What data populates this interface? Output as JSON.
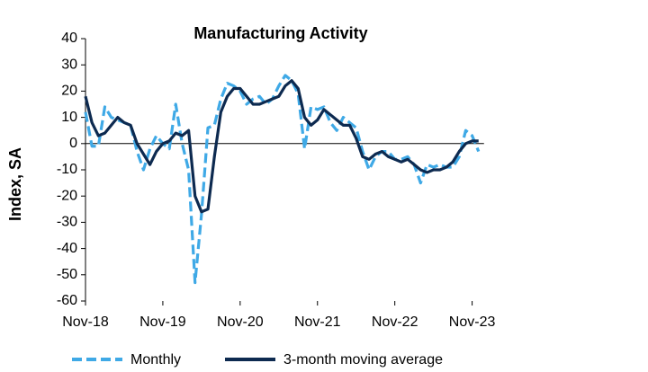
{
  "chart_data": {
    "type": "line",
    "title": "Manufacturing Activity",
    "y_label": "Index, SA",
    "categories": [
      "Nov-18",
      null,
      null,
      null,
      null,
      null,
      null,
      null,
      null,
      null,
      null,
      null,
      "Nov-19",
      null,
      null,
      null,
      null,
      null,
      null,
      null,
      null,
      null,
      null,
      null,
      "Nov-20",
      null,
      null,
      null,
      null,
      null,
      null,
      null,
      null,
      null,
      null,
      null,
      "Nov-21",
      null,
      null,
      null,
      null,
      null,
      null,
      null,
      null,
      null,
      null,
      null,
      "Nov-22",
      null,
      null,
      null,
      null,
      null,
      null,
      null,
      null,
      null,
      null,
      null,
      "Nov-23",
      null
    ],
    "series": [
      {
        "name": "Monthly",
        "color": "#3fa9e6",
        "dashed": true,
        "values": [
          12,
          -1,
          -1,
          14,
          10,
          9,
          8,
          7,
          -3,
          -10,
          -2,
          3,
          0,
          -2,
          15,
          0,
          -10,
          -53,
          -27,
          6,
          7,
          17,
          23,
          22,
          20,
          15,
          17,
          18,
          15,
          17,
          22,
          26,
          24,
          19,
          -2,
          14,
          13,
          14,
          8,
          5,
          10,
          8,
          6,
          -3,
          -10,
          -5,
          -3,
          -3,
          -6,
          -6,
          -5,
          -8,
          -15,
          -8,
          -9,
          -8,
          -9,
          -9,
          -5,
          5,
          3,
          -3
        ]
      },
      {
        "name": "3-month moving average",
        "color": "#0d2a50",
        "dashed": false,
        "values": [
          18,
          8,
          3,
          4,
          7,
          10,
          8,
          7,
          0,
          -4,
          -8,
          -3,
          0,
          1,
          4,
          3,
          5,
          -20,
          -26,
          -25,
          -5,
          12,
          18,
          21,
          21,
          18,
          15,
          15,
          16,
          17,
          18,
          22,
          24,
          21,
          10,
          7,
          9,
          13,
          11,
          9,
          7,
          7,
          2,
          -5,
          -6,
          -4,
          -3,
          -5,
          -6,
          -7,
          -6,
          -8,
          -10,
          -11,
          -10,
          -10,
          -9,
          -7,
          -3,
          0,
          1,
          1
        ]
      }
    ],
    "ylim": [
      -60,
      40
    ],
    "yticks": [
      -60,
      -50,
      -40,
      -30,
      -20,
      -10,
      0,
      10,
      20,
      30,
      40
    ],
    "legend": "bottom"
  }
}
